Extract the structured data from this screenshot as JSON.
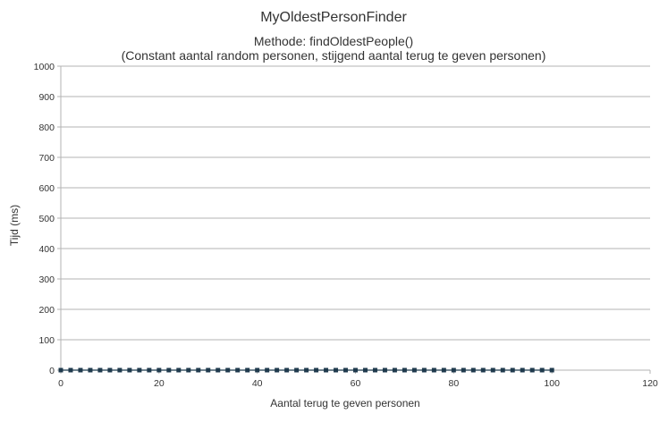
{
  "chart_data": {
    "type": "line",
    "title": "MyOldestPersonFinder",
    "subtitle_lines": [
      "Methode: findOldestPeople()",
      "(Constant aantal random personen, stijgend aantal terug te geven personen)"
    ],
    "xlabel": "Aantal terug te geven personen",
    "ylabel": "Tijd (ms)",
    "xlim": [
      0,
      120
    ],
    "ylim": [
      0,
      1000
    ],
    "x_ticks": [
      0,
      20,
      40,
      60,
      80,
      100,
      120
    ],
    "y_ticks": [
      0,
      100,
      200,
      300,
      400,
      500,
      600,
      700,
      800,
      900,
      1000
    ],
    "grid": true,
    "legend": "none",
    "series_color": "#1f3a4d",
    "series": [
      {
        "x": [
          0,
          2,
          4,
          6,
          8,
          10,
          12,
          14,
          16,
          18,
          20,
          22,
          24,
          26,
          28,
          30,
          32,
          34,
          36,
          38,
          40,
          42,
          44,
          46,
          48,
          50,
          52,
          54,
          56,
          58,
          60,
          62,
          64,
          66,
          68,
          70,
          72,
          74,
          76,
          78,
          80,
          82,
          84,
          86,
          88,
          90,
          92,
          94,
          96,
          98,
          100
        ],
        "y": [
          0,
          0,
          0,
          0,
          0,
          0,
          0,
          0,
          0,
          0,
          0,
          0,
          0,
          0,
          0,
          0,
          0,
          0,
          0,
          0,
          0,
          0,
          0,
          0,
          0,
          0,
          0,
          0,
          0,
          0,
          0,
          0,
          0,
          0,
          0,
          0,
          0,
          0,
          0,
          0,
          0,
          0,
          0,
          0,
          0,
          0,
          0,
          0,
          0,
          0,
          0
        ]
      }
    ]
  }
}
